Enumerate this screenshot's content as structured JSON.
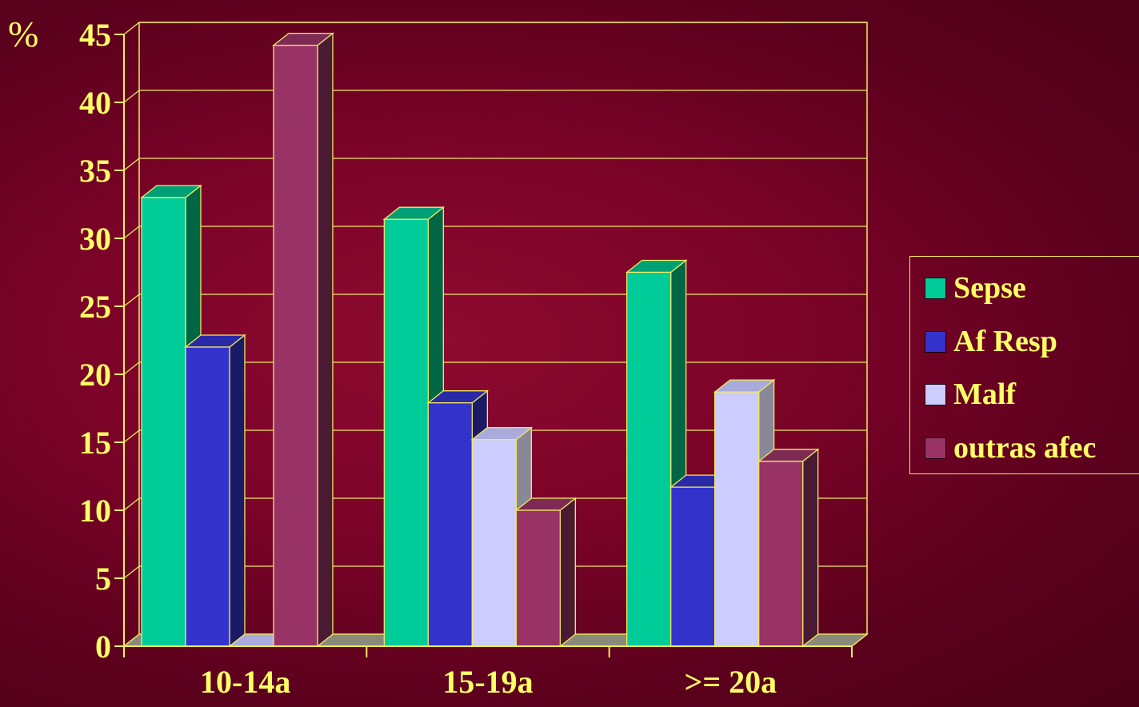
{
  "chart_data": {
    "type": "bar",
    "ylabel": "%",
    "ylim": [
      0,
      45
    ],
    "yticks": [
      "0",
      "5",
      "10",
      "15",
      "20",
      "25",
      "30",
      "35",
      "40",
      "45"
    ],
    "categories": [
      "10-14a",
      "15-19a",
      ">= 20a"
    ],
    "series": [
      {
        "name": "Sepse",
        "values": [
          33,
          31.4,
          27.5
        ]
      },
      {
        "name": "Af Resp",
        "values": [
          22,
          17.9,
          11.7
        ]
      },
      {
        "name": "Malf",
        "values": [
          0,
          15.2,
          18.7
        ]
      },
      {
        "name": "outras afec",
        "values": [
          44.2,
          10,
          13.6
        ]
      }
    ],
    "grid": true,
    "legend_position": "right"
  },
  "colors": {
    "axis": "#f0ea60",
    "text": "#ffff66",
    "series_front": [
      "#00cc99",
      "#3333cc",
      "#ccccff",
      "#993366"
    ],
    "series_top": [
      "#00a077",
      "#2a2aa8",
      "#aaaadd",
      "#7e2a54"
    ],
    "series_side": [
      "#006644",
      "#1a1a66",
      "#888899",
      "#4a1a33"
    ]
  }
}
